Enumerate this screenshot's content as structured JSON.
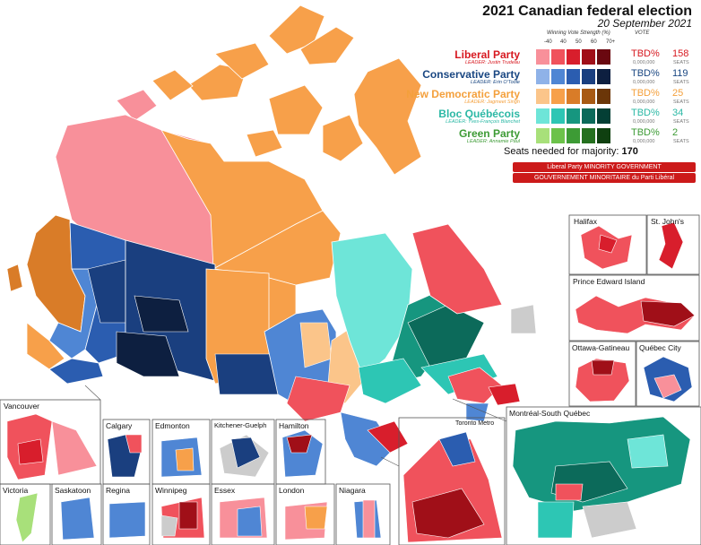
{
  "title": "2021 Canadian federal election",
  "subtitle": "20 September 2021",
  "legend": {
    "strength_header": "Winning Vote Strength (%)",
    "vote_header": "VOTE",
    "strength_levels": [
      "-40",
      "40",
      "50",
      "60",
      "70+"
    ],
    "parties": [
      {
        "name": "Liberal Party",
        "leader": "LEADER: Justin Trudeau",
        "vote_pct": "TBD%",
        "votes": "0,000,000",
        "seats": "158",
        "seats_label": "SEATS",
        "color": "#d71920",
        "shades": [
          "#f8909a",
          "#f0525c",
          "#d81e2c",
          "#a00f18",
          "#6a0810"
        ]
      },
      {
        "name": "Conservative Party",
        "leader": "LEADER: Erin O'Toole",
        "vote_pct": "TBD%",
        "votes": "0,000,000",
        "seats": "119",
        "seats_label": "SEATS",
        "color": "#1a4782",
        "shades": [
          "#8fb2e8",
          "#4f86d4",
          "#2b5db0",
          "#1a3f7f",
          "#0d1f40"
        ]
      },
      {
        "name": "New Democratic Party",
        "leader": "LEADER: Jagmeet Singh",
        "vote_pct": "TBD%",
        "votes": "0,000,000",
        "seats": "25",
        "seats_label": "SEATS",
        "color": "#f4a03c",
        "shades": [
          "#fbc58a",
          "#f7a04a",
          "#d97c28",
          "#a85a14",
          "#6b3608"
        ]
      },
      {
        "name": "Bloc Québécois",
        "leader": "LEADER: Yves-François Blanchet",
        "vote_pct": "TBD%",
        "votes": "0,000,000",
        "seats": "34",
        "seats_label": "SEATS",
        "color": "#2bb8a5",
        "shades": [
          "#6ee5d8",
          "#2dc6b4",
          "#16967f",
          "#0c6a5a",
          "#043f35"
        ]
      },
      {
        "name": "Green Party",
        "leader": "LEADER: Annamie Paul",
        "vote_pct": "TBD%",
        "votes": "0,000,000",
        "seats": "2",
        "seats_label": "SEATS",
        "color": "#3d9b35",
        "shades": [
          "#a8e07a",
          "#6cc24a",
          "#3d9b35",
          "#25701f",
          "#0f4010"
        ]
      }
    ]
  },
  "majority": {
    "label": "Seats needed for majority:",
    "value": "170"
  },
  "result_en": "Liberal Party MINORITY GOVERNMENT",
  "result_fr": "GOUVERNEMENT MINORITAIRE du Parti Libéral",
  "insets": [
    "Halifax",
    "St. John's",
    "Prince Edward Island",
    "Ottawa-Gatineau",
    "Québec City",
    "Montréal-South Québec",
    "Toronto Metro",
    "Vancouver",
    "Calgary",
    "Edmonton",
    "Kitchener-Guelph",
    "Hamilton",
    "Victoria",
    "Saskatoon",
    "Regina",
    "Winnipeg",
    "Essex",
    "London",
    "Niagara"
  ]
}
